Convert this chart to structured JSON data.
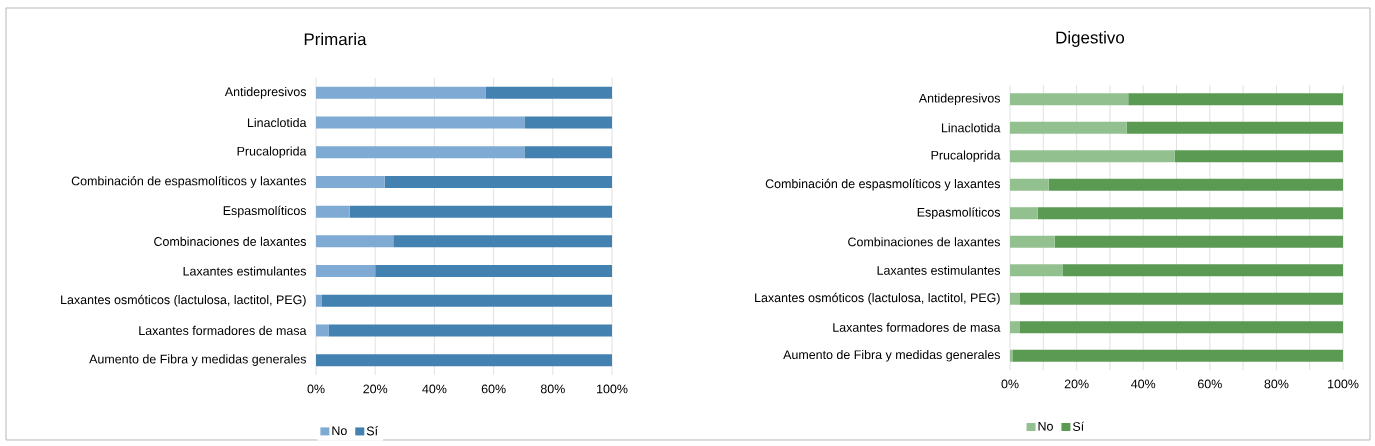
{
  "chart_data": [
    {
      "type": "bar",
      "title": "Primaria",
      "orientation": "horizontal",
      "stacked": true,
      "grid": "x",
      "legend": "bottom",
      "categories": [
        "Antidepresivos",
        "Linaclotida",
        "Prucaloprida",
        "Combinación de espasmolíticos y laxantes",
        "Espasmolíticos",
        "Combinaciones de laxantes",
        "Laxantes estimulantes",
        "Laxantes osmóticos (lactulosa, lactitol, PEG)",
        "Laxantes formadores de masa",
        "Aumento de Fibra y medidas generales"
      ],
      "series": [
        {
          "name": "No",
          "color": "#7faad4",
          "values": [
            57.4,
            70.4,
            70.4,
            23.2,
            11.4,
            26.1,
            20,
            2,
            4.2,
            0
          ]
        },
        {
          "name": "Sí",
          "color": "#4281b0",
          "values": [
            42.6,
            29.6,
            29.6,
            76.8,
            88.6,
            73.9,
            80,
            98,
            95.8,
            100
          ]
        }
      ],
      "xlim": [
        0,
        100
      ],
      "xticks": [
        {
          "value": 0,
          "label": "0%"
        },
        {
          "value": 20,
          "label": "20%"
        },
        {
          "value": 40,
          "label": "40%"
        },
        {
          "value": 60,
          "label": "60%"
        },
        {
          "value": 80,
          "label": "80%"
        },
        {
          "value": 100,
          "label": "100%"
        }
      ]
    },
    {
      "type": "bar",
      "title": "Digestivo",
      "orientation": "horizontal",
      "stacked": true,
      "grid": "x",
      "legend": "bottom",
      "categories": [
        "Antidepresivos",
        "Linaclotida",
        "Prucaloprida",
        "Combinación de espasmolíticos y laxantes",
        "Espasmolíticos",
        "Combinaciones de laxantes",
        "Laxantes estimulantes",
        "Laxantes osmóticos (lactulosa, lactitol, PEG)",
        "Laxantes formadores de masa",
        "Aumento de Fibra y medidas generales"
      ],
      "series": [
        {
          "name": "No",
          "color": "#93c08f",
          "values": [
            35.5,
            35,
            49.5,
            11.6,
            8.3,
            13.4,
            15.9,
            3,
            3,
            0.7
          ]
        },
        {
          "name": "Sí",
          "color": "#5b9a52",
          "values": [
            64.5,
            65,
            50.5,
            88.4,
            91.7,
            86.6,
            84.1,
            97,
            97,
            99.3
          ]
        }
      ],
      "xlim": [
        0,
        100
      ],
      "xticks": [
        {
          "value": 0,
          "label": "0%"
        },
        {
          "value": 10,
          "label": null
        },
        {
          "value": 20,
          "label": "20%"
        },
        {
          "value": 30,
          "label": null
        },
        {
          "value": 40,
          "label": "40%"
        },
        {
          "value": 50,
          "label": null
        },
        {
          "value": 60,
          "label": "60%"
        },
        {
          "value": 70,
          "label": null
        },
        {
          "value": 80,
          "label": "80%"
        },
        {
          "value": 90,
          "label": null
        },
        {
          "value": 100,
          "label": "100%"
        }
      ]
    }
  ]
}
